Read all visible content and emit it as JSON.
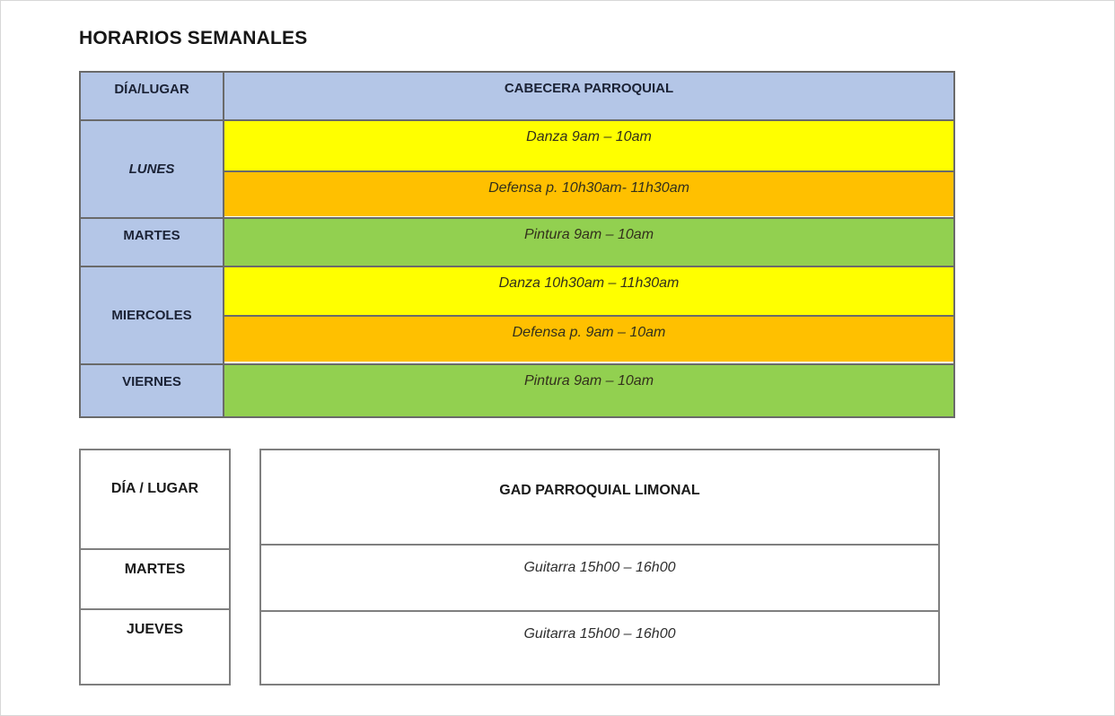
{
  "page": {
    "title": "HORARIOS SEMANALES"
  },
  "colors": {
    "header_blue": "#b4c6e7",
    "yellow": "#ffff00",
    "orange": "#ffc000",
    "green": "#92d050",
    "table1_border": "#6a6a6a",
    "table2_border": "#7f7f7f"
  },
  "table1": {
    "header": {
      "day_col": "DÍA/LUGAR",
      "place_col": "CABECERA PARROQUIAL"
    },
    "rows": [
      {
        "day": "LUNES",
        "entries": [
          {
            "text": "Danza 9am – 10am",
            "color": "yellow"
          },
          {
            "text": "Defensa p. 10h30am- 11h30am",
            "color": "orange"
          }
        ]
      },
      {
        "day": "MARTES",
        "entries": [
          {
            "text": "Pintura 9am – 10am",
            "color": "green"
          }
        ]
      },
      {
        "day": "MIERCOLES",
        "entries": [
          {
            "text": "Danza 10h30am – 11h30am",
            "color": "yellow"
          },
          {
            "text": "Defensa p. 9am – 10am",
            "color": "orange"
          }
        ]
      },
      {
        "day": "VIERNES",
        "entries": [
          {
            "text": "Pintura 9am – 10am",
            "color": "green"
          }
        ]
      }
    ]
  },
  "table2": {
    "header": {
      "day_col": "DÍA / LUGAR",
      "place_col": "GAD PARROQUIAL LIMONAL"
    },
    "rows": [
      {
        "day": "MARTES",
        "entry": "Guitarra 15h00 – 16h00"
      },
      {
        "day": "JUEVES",
        "entry": "Guitarra 15h00 – 16h00"
      }
    ]
  }
}
